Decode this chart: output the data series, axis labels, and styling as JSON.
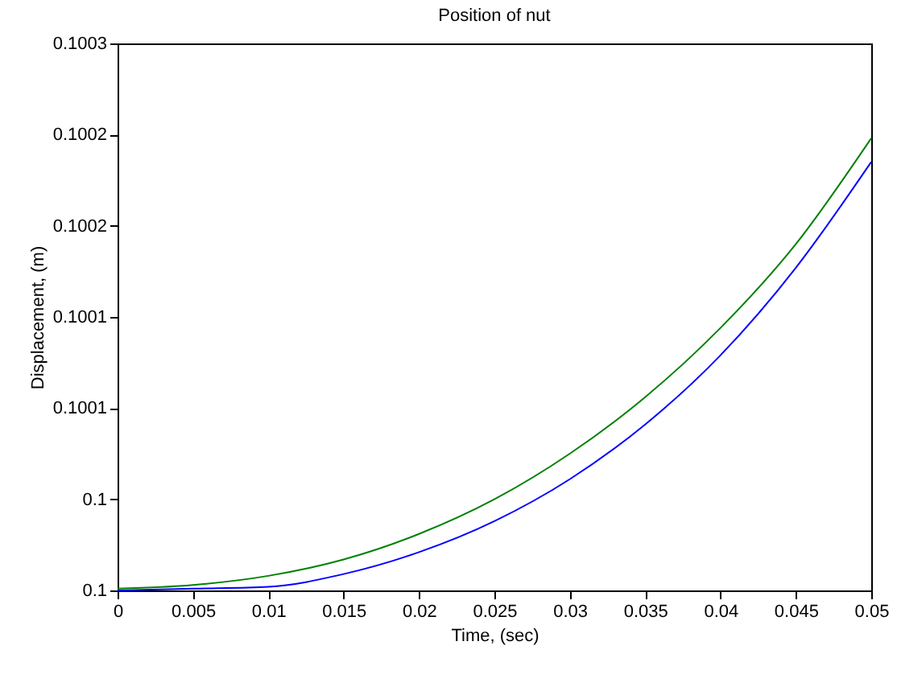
{
  "chart_data": {
    "type": "line",
    "title": "Position of nut",
    "xlabel": "Time, (sec)",
    "ylabel": "Displacement, (m)",
    "x": [
      0,
      0.005,
      0.01,
      0.015,
      0.02,
      0.025,
      0.03,
      0.035,
      0.04,
      0.045,
      0.05
    ],
    "series": [
      {
        "color": "#008000",
        "values": [
          0.100001,
          0.100003,
          0.100008,
          0.100017,
          0.100031,
          0.10005,
          0.100075,
          0.100106,
          0.100144,
          0.10019,
          0.100248
        ]
      },
      {
        "color": "#0000ff",
        "values": [
          0.1,
          0.100001,
          0.100002,
          0.100009,
          0.100021,
          0.100038,
          0.100061,
          0.100091,
          0.100129,
          0.100177,
          0.100235
        ]
      }
    ],
    "xlim": [
      0,
      0.05
    ],
    "xticks": [
      0,
      0.005,
      0.01,
      0.015,
      0.02,
      0.025,
      0.03,
      0.035,
      0.04,
      0.045,
      0.05
    ],
    "ylim": [
      0.1,
      0.1003
    ],
    "yticks": [
      0.1,
      {
        "value": 0.10005,
        "label": "0.1"
      },
      0.1001,
      {
        "value": 0.10015,
        "label": "0.1001"
      },
      0.1002,
      {
        "value": 0.10025,
        "label": "0.1002"
      },
      0.1003
    ],
    "grid": false,
    "marker": "none",
    "line_style": "solid"
  }
}
